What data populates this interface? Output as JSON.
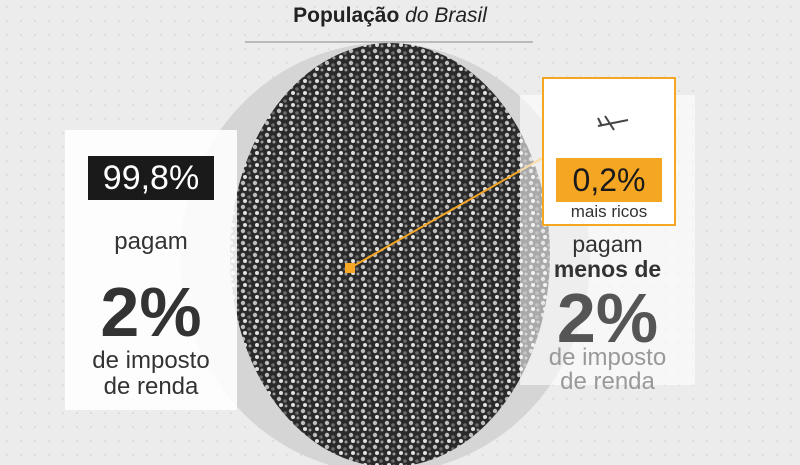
{
  "header": {
    "title_bold": "População",
    "title_italic": "do Brasil"
  },
  "left": {
    "share": "99,8%",
    "verb": "pagam",
    "rate": "2%",
    "line1": "de imposto",
    "line2": "de renda"
  },
  "right": {
    "share": "0,2%",
    "group": "mais ricos",
    "verb": "pagam",
    "qualifier": "menos de",
    "rate": "2%",
    "line1": "de imposto",
    "line2": "de renda"
  }
}
